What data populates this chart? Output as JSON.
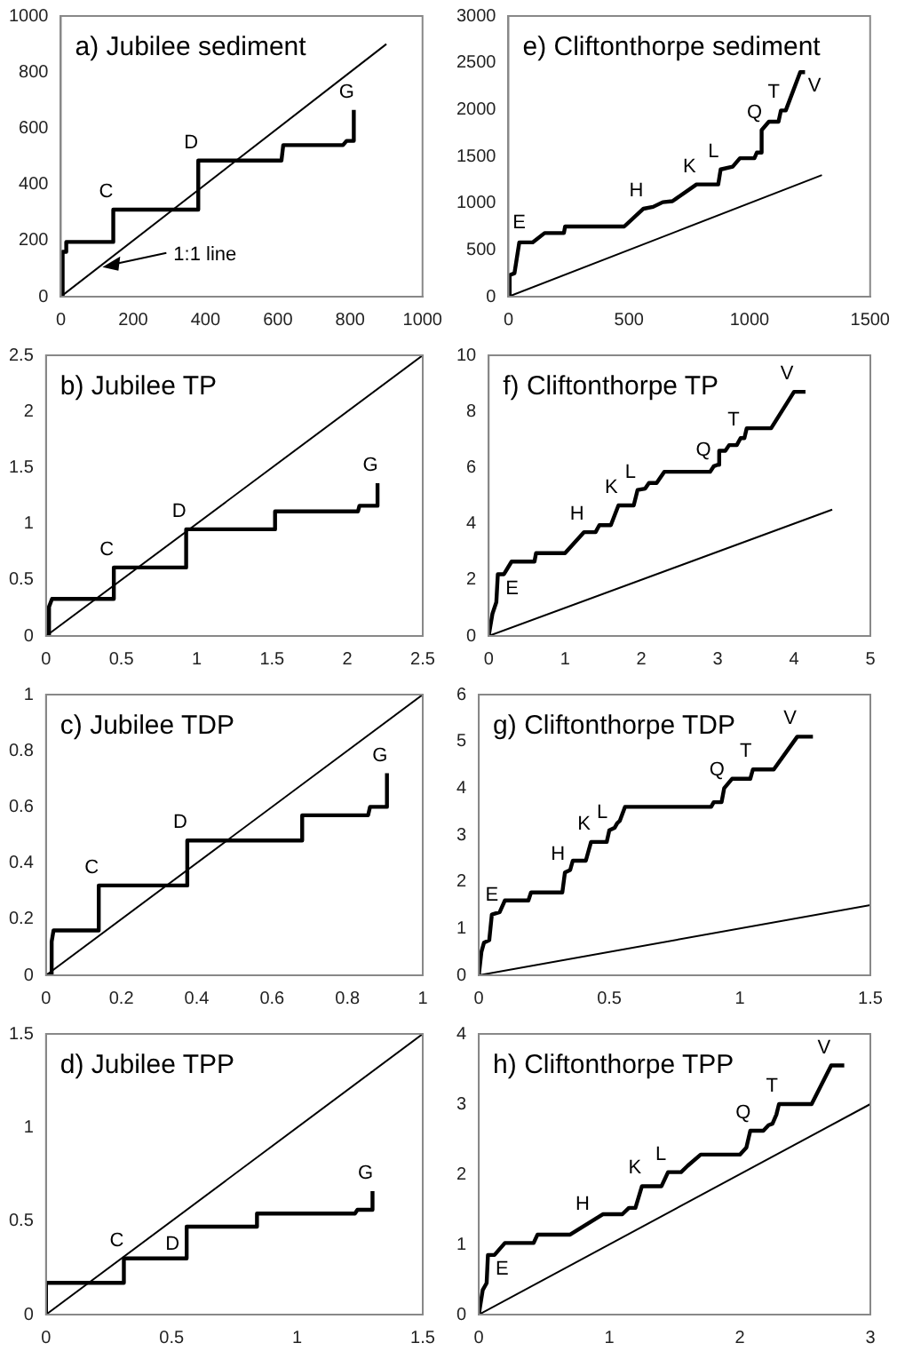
{
  "chart_data": [
    {
      "type": "line",
      "title": "a) Jubilee sediment",
      "marker": "none",
      "xlim": [
        0,
        1000
      ],
      "xticks": [
        0,
        200,
        400,
        600,
        800,
        1000
      ],
      "ylim": [
        0,
        1000
      ],
      "yticks": [
        0,
        200,
        400,
        600,
        800,
        1000
      ],
      "series": [
        {
          "color": "#000000",
          "x": [
            0,
            5,
            5,
            15,
            15,
            145,
            145,
            380,
            380,
            610,
            615,
            780,
            790,
            810,
            810
          ],
          "values": [
            0,
            0,
            160,
            160,
            195,
            195,
            310,
            310,
            485,
            485,
            540,
            540,
            555,
            555,
            665
          ]
        },
        {
          "type": "line",
          "color": "#000000",
          "x": [
            0,
            900
          ],
          "values": [
            0,
            900
          ]
        }
      ],
      "annotations": [
        {
          "text": "C",
          "x": 145,
          "y": 310
        },
        {
          "text": "D",
          "x": 380,
          "y": 485
        },
        {
          "text": "G",
          "x": 810,
          "y": 665
        },
        {
          "text": "1:1 line",
          "x": 115,
          "y": 105
        }
      ]
    },
    {
      "type": "line",
      "title": "b) Jubilee TP",
      "marker": "none",
      "xlim": [
        0,
        2.5
      ],
      "xticks": [
        0,
        0.5,
        1,
        1.5,
        2,
        2.5
      ],
      "ylim": [
        0,
        2.5
      ],
      "yticks": [
        0,
        0.5,
        1,
        1.5,
        2,
        2.5
      ],
      "series": [
        {
          "color": "#000000",
          "x": [
            0,
            0.02,
            0.02,
            0.04,
            0.45,
            0.45,
            0.93,
            0.93,
            1.52,
            1.52,
            2.07,
            2.08,
            2.2,
            2.2
          ],
          "values": [
            0,
            0,
            0.26,
            0.33,
            0.33,
            0.61,
            0.61,
            0.95,
            0.95,
            1.11,
            1.11,
            1.16,
            1.16,
            1.36
          ]
        },
        {
          "type": "line",
          "color": "#000000",
          "x": [
            0,
            2.5
          ],
          "values": [
            0,
            2.5
          ]
        }
      ],
      "annotations": [
        {
          "text": "C",
          "x": 0.45,
          "y": 0.61
        },
        {
          "text": "D",
          "x": 0.93,
          "y": 0.95
        },
        {
          "text": "G",
          "x": 2.2,
          "y": 1.36
        }
      ]
    },
    {
      "type": "line",
      "title": "c) Jubilee TDP",
      "marker": "none",
      "xlim": [
        0,
        1
      ],
      "xticks": [
        0,
        0.2,
        0.4,
        0.6,
        0.8,
        1
      ],
      "ylim": [
        0,
        1
      ],
      "yticks": [
        0,
        0.2,
        0.4,
        0.6,
        0.8,
        1
      ],
      "series": [
        {
          "color": "#000000",
          "x": [
            0,
            0.015,
            0.015,
            0.02,
            0.14,
            0.14,
            0.375,
            0.375,
            0.68,
            0.68,
            0.855,
            0.86,
            0.905,
            0.905
          ],
          "values": [
            0,
            0,
            0.12,
            0.16,
            0.16,
            0.32,
            0.32,
            0.48,
            0.48,
            0.57,
            0.57,
            0.6,
            0.6,
            0.72
          ]
        },
        {
          "type": "line",
          "color": "#000000",
          "x": [
            0,
            1
          ],
          "values": [
            0,
            1
          ]
        }
      ],
      "annotations": [
        {
          "text": "C",
          "x": 0.14,
          "y": 0.32
        },
        {
          "text": "D",
          "x": 0.375,
          "y": 0.48
        },
        {
          "text": "G",
          "x": 0.905,
          "y": 0.72
        }
      ]
    },
    {
      "type": "line",
      "title": "d) Jubilee TPP",
      "marker": "none",
      "xlim": [
        0,
        1.5
      ],
      "xticks": [
        0,
        0.5,
        1,
        1.5
      ],
      "ylim": [
        0,
        1.5
      ],
      "yticks": [
        0,
        0.5,
        1,
        1.5
      ],
      "series": [
        {
          "color": "#000000",
          "x": [
            0,
            0,
            0.31,
            0.31,
            0.56,
            0.56,
            0.84,
            0.84,
            1.23,
            1.24,
            1.3,
            1.3
          ],
          "values": [
            0,
            0.17,
            0.17,
            0.3,
            0.3,
            0.47,
            0.47,
            0.54,
            0.54,
            0.56,
            0.56,
            0.66
          ]
        },
        {
          "type": "line",
          "color": "#000000",
          "x": [
            0,
            1.5
          ],
          "values": [
            0,
            1.5
          ]
        }
      ],
      "annotations": [
        {
          "text": "C",
          "x": 0.31,
          "y": 0.3
        },
        {
          "text": "D",
          "x": 0.56,
          "y": 0.3
        },
        {
          "text": "G",
          "x": 1.3,
          "y": 0.66
        }
      ]
    },
    {
      "type": "line",
      "title": "e) Cliftonthorpe sediment",
      "marker": "none",
      "xlim": [
        0,
        1500
      ],
      "xticks": [
        0,
        500,
        1000,
        1500
      ],
      "ylim": [
        0,
        3000
      ],
      "yticks": [
        0,
        500,
        1000,
        1500,
        2000,
        2500,
        3000
      ],
      "series": [
        {
          "color": "#000000",
          "x": [
            0,
            5,
            25,
            45,
            100,
            150,
            230,
            235,
            480,
            560,
            600,
            640,
            680,
            780,
            870,
            880,
            930,
            960,
            1020,
            1030,
            1045,
            1050,
            1080,
            1120,
            1130,
            1150,
            1210,
            1230
          ],
          "values": [
            0,
            230,
            250,
            580,
            580,
            680,
            680,
            750,
            750,
            940,
            960,
            1010,
            1020,
            1200,
            1200,
            1360,
            1390,
            1480,
            1480,
            1540,
            1540,
            1780,
            1870,
            1870,
            1990,
            1990,
            2400,
            2400
          ]
        },
        {
          "type": "line",
          "color": "#000000",
          "x": [
            0,
            1300
          ],
          "values": [
            0,
            1300
          ]
        }
      ],
      "annotations": [
        {
          "text": "E",
          "x": 45,
          "y": 580
        },
        {
          "text": "H",
          "x": 560,
          "y": 940
        },
        {
          "text": "K",
          "x": 780,
          "y": 1200
        },
        {
          "text": "L",
          "x": 880,
          "y": 1360
        },
        {
          "text": "Q",
          "x": 1050,
          "y": 1780
        },
        {
          "text": "T",
          "x": 1130,
          "y": 1990
        },
        {
          "text": "V",
          "x": 1210,
          "y": 2400
        }
      ]
    },
    {
      "type": "line",
      "title": "f) Cliftonthorpe TP",
      "marker": "none",
      "xlim": [
        0,
        5
      ],
      "xticks": [
        0,
        1,
        2,
        3,
        4,
        5
      ],
      "ylim": [
        0,
        10
      ],
      "yticks": [
        0,
        2,
        4,
        6,
        8,
        10
      ],
      "series": [
        {
          "color": "#000000",
          "x": [
            0,
            0.05,
            0.1,
            0.12,
            0.2,
            0.3,
            0.6,
            0.62,
            1.0,
            1.25,
            1.4,
            1.45,
            1.6,
            1.7,
            1.9,
            1.95,
            2.05,
            2.1,
            2.2,
            2.3,
            2.9,
            2.95,
            3.0,
            3.02,
            3.1,
            3.15,
            3.25,
            3.3,
            3.35,
            3.38,
            3.7,
            4.0,
            4.15
          ],
          "values": [
            0,
            0.8,
            1.2,
            2.2,
            2.2,
            2.65,
            2.65,
            2.95,
            2.95,
            3.7,
            3.7,
            3.95,
            3.95,
            4.65,
            4.65,
            5.2,
            5.25,
            5.45,
            5.45,
            5.85,
            5.85,
            6.05,
            6.1,
            6.6,
            6.6,
            6.8,
            6.8,
            7.05,
            7.05,
            7.4,
            7.4,
            8.7,
            8.7
          ]
        },
        {
          "type": "line",
          "color": "#000000",
          "x": [
            0,
            4.5
          ],
          "values": [
            0,
            4.5
          ]
        }
      ],
      "annotations": [
        {
          "text": "E",
          "x": 0.12,
          "y": 2.2
        },
        {
          "text": "H",
          "x": 1.25,
          "y": 3.7
        },
        {
          "text": "K",
          "x": 1.7,
          "y": 4.65
        },
        {
          "text": "L",
          "x": 1.95,
          "y": 5.2
        },
        {
          "text": "Q",
          "x": 3.0,
          "y": 6.1
        },
        {
          "text": "T",
          "x": 3.3,
          "y": 7.05
        },
        {
          "text": "V",
          "x": 4.0,
          "y": 8.7
        }
      ]
    },
    {
      "type": "line",
      "title": "g) Cliftonthorpe TDP",
      "marker": "none",
      "xlim": [
        0,
        1.5
      ],
      "xticks": [
        0,
        0.5,
        1,
        1.5
      ],
      "ylim": [
        0,
        6
      ],
      "yticks": [
        0,
        1,
        2,
        3,
        4,
        5,
        6
      ],
      "series": [
        {
          "color": "#000000",
          "x": [
            0,
            0.01,
            0.02,
            0.04,
            0.05,
            0.08,
            0.1,
            0.19,
            0.2,
            0.32,
            0.33,
            0.35,
            0.36,
            0.41,
            0.43,
            0.49,
            0.5,
            0.52,
            0.53,
            0.54,
            0.56,
            0.89,
            0.9,
            0.93,
            0.94,
            0.97,
            1.04,
            1.05,
            1.13,
            1.22,
            1.28
          ],
          "values": [
            0,
            0.5,
            0.7,
            0.75,
            1.3,
            1.35,
            1.6,
            1.6,
            1.77,
            1.77,
            2.2,
            2.25,
            2.45,
            2.45,
            2.85,
            2.85,
            3.1,
            3.15,
            3.25,
            3.3,
            3.6,
            3.6,
            3.7,
            3.7,
            4.0,
            4.2,
            4.2,
            4.4,
            4.4,
            5.1,
            5.1
          ]
        },
        {
          "type": "line",
          "color": "#000000",
          "x": [
            0,
            1.5
          ],
          "values": [
            0,
            1.5
          ]
        }
      ],
      "annotations": [
        {
          "text": "E",
          "x": 0.05,
          "y": 1.3
        },
        {
          "text": "H",
          "x": 0.33,
          "y": 2.2
        },
        {
          "text": "K",
          "x": 0.43,
          "y": 2.85
        },
        {
          "text": "L",
          "x": 0.5,
          "y": 3.1
        },
        {
          "text": "Q",
          "x": 0.94,
          "y": 4.0
        },
        {
          "text": "T",
          "x": 1.05,
          "y": 4.4
        },
        {
          "text": "V",
          "x": 1.22,
          "y": 5.1
        }
      ]
    },
    {
      "type": "line",
      "title": "h) Cliftonthorpe TPP",
      "marker": "none",
      "xlim": [
        0,
        3
      ],
      "xticks": [
        0,
        1,
        2,
        3
      ],
      "ylim": [
        0,
        4
      ],
      "yticks": [
        0,
        1,
        2,
        3,
        4
      ],
      "series": [
        {
          "color": "#000000",
          "x": [
            0,
            0.03,
            0.06,
            0.07,
            0.12,
            0.2,
            0.42,
            0.45,
            0.7,
            0.95,
            1.1,
            1.15,
            1.2,
            1.25,
            1.4,
            1.45,
            1.55,
            1.6,
            1.7,
            2.0,
            2.05,
            2.08,
            2.18,
            2.22,
            2.25,
            2.28,
            2.3,
            2.55,
            2.7,
            2.8
          ],
          "values": [
            0,
            0.35,
            0.45,
            0.85,
            0.85,
            1.02,
            1.02,
            1.14,
            1.14,
            1.43,
            1.43,
            1.52,
            1.52,
            1.83,
            1.83,
            2.03,
            2.03,
            2.12,
            2.28,
            2.28,
            2.38,
            2.62,
            2.62,
            2.7,
            2.72,
            2.85,
            3.0,
            3.0,
            3.55,
            3.55
          ]
        },
        {
          "type": "line",
          "color": "#000000",
          "x": [
            0,
            3
          ],
          "values": [
            0,
            3
          ]
        }
      ],
      "annotations": [
        {
          "text": "E",
          "x": 0.07,
          "y": 0.85
        },
        {
          "text": "H",
          "x": 0.85,
          "y": 1.32
        },
        {
          "text": "K",
          "x": 1.25,
          "y": 1.83
        },
        {
          "text": "L",
          "x": 1.45,
          "y": 2.03
        },
        {
          "text": "Q",
          "x": 2.08,
          "y": 2.62
        },
        {
          "text": "T",
          "x": 2.3,
          "y": 3.0
        },
        {
          "text": "V",
          "x": 2.7,
          "y": 3.55
        }
      ]
    }
  ]
}
